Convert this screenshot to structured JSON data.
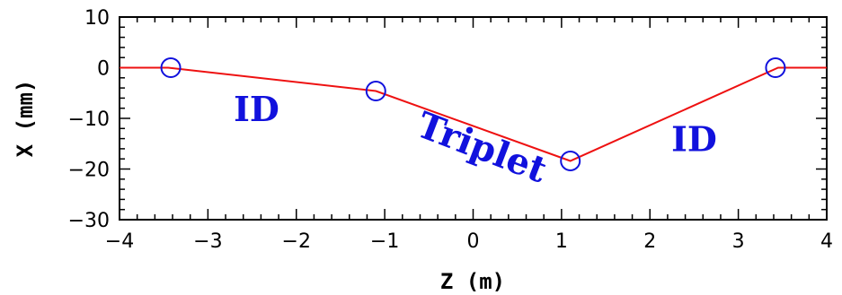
{
  "chart_data": {
    "type": "line",
    "xlabel": "Z (m)",
    "ylabel": "X (mm)",
    "xlim": [
      -4,
      4
    ],
    "ylim": [
      -30,
      10
    ],
    "x_ticks": [
      -4,
      -3,
      -2,
      -1,
      0,
      1,
      2,
      3,
      4
    ],
    "x_tick_labels": [
      "−4",
      "−3",
      "−2",
      "−1",
      "0",
      "1",
      "2",
      "3",
      "4"
    ],
    "y_ticks": [
      -30,
      -20,
      -10,
      0,
      10
    ],
    "y_tick_labels": [
      "−30",
      "−20",
      "−10",
      "0",
      "10"
    ],
    "grid": false,
    "series": [
      {
        "color": "#ee1111",
        "x": [
          -4.0,
          -3.45,
          -1.1,
          1.1,
          3.45,
          4.0
        ],
        "y": [
          0.0,
          0.0,
          -4.6,
          -18.4,
          0.0,
          0.0
        ]
      }
    ],
    "markers": {
      "shape": "open-circle",
      "color": "#1111dd",
      "x": [
        -3.42,
        -1.1,
        1.1,
        3.42
      ],
      "y": [
        0.0,
        -4.6,
        -18.4,
        0.0
      ]
    },
    "annotations": [
      {
        "text": "ID",
        "x": -2.45,
        "y": -10.5,
        "color": "#1111dd"
      },
      {
        "text": "Triplet",
        "x": 0.05,
        "y": -18.0,
        "color": "#1111dd"
      },
      {
        "text": "ID",
        "x": 2.5,
        "y": -16.5,
        "color": "#1111dd"
      }
    ]
  }
}
